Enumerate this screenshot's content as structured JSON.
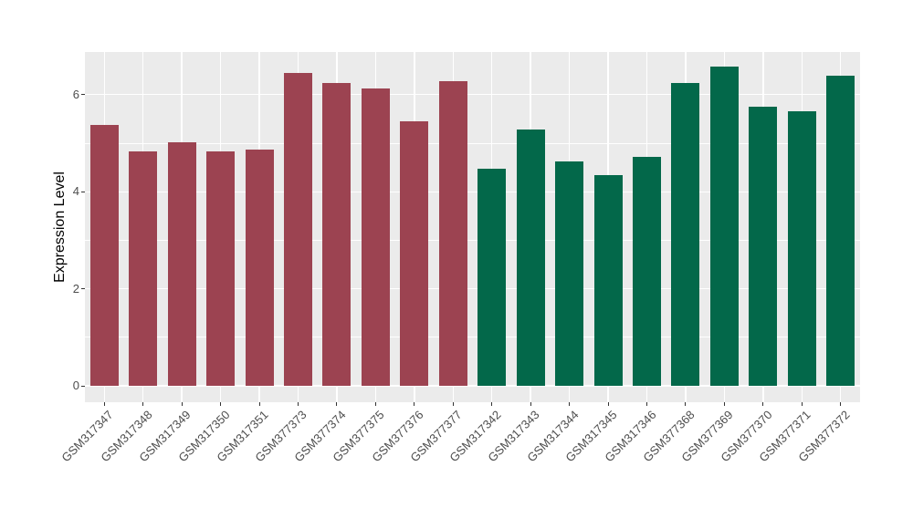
{
  "figure": {
    "background": "#FFFFFF",
    "panel_background": "#EBEBEB",
    "gridline_color": "#FFFFFF",
    "tick_color": "#333333",
    "axis_text_color": "#4D4D4D",
    "axis_title_color": "#000000"
  },
  "chart_data": {
    "type": "bar",
    "title": "",
    "xlabel": "",
    "ylabel": "Expression Level",
    "ylim": [
      0,
      6.9
    ],
    "yticks": [
      0,
      2,
      4,
      6
    ],
    "yticks_minor": [
      1,
      3,
      5
    ],
    "grid": "white major and minor gridlines on gray panel",
    "legend": "none",
    "x_label_rotation_deg": 45,
    "group_colors": {
      "left_group": "#9C4351",
      "right_group": "#03684A"
    },
    "categories": [
      "GSM317347",
      "GSM317348",
      "GSM317349",
      "GSM317350",
      "GSM317351",
      "GSM377373",
      "GSM377374",
      "GSM377375",
      "GSM377376",
      "GSM377377",
      "GSM317342",
      "GSM317343",
      "GSM317344",
      "GSM317345",
      "GSM317346",
      "GSM377368",
      "GSM377369",
      "GSM377370",
      "GSM377371",
      "GSM377372"
    ],
    "values": [
      5.38,
      4.84,
      5.02,
      4.84,
      4.86,
      6.44,
      6.24,
      6.12,
      5.45,
      6.27,
      4.48,
      5.28,
      4.62,
      4.35,
      4.71,
      6.24,
      6.57,
      5.75,
      5.65,
      6.39
    ],
    "colors": [
      "#9C4351",
      "#9C4351",
      "#9C4351",
      "#9C4351",
      "#9C4351",
      "#9C4351",
      "#9C4351",
      "#9C4351",
      "#9C4351",
      "#9C4351",
      "#03684A",
      "#03684A",
      "#03684A",
      "#03684A",
      "#03684A",
      "#03684A",
      "#03684A",
      "#03684A",
      "#03684A",
      "#03684A"
    ]
  }
}
